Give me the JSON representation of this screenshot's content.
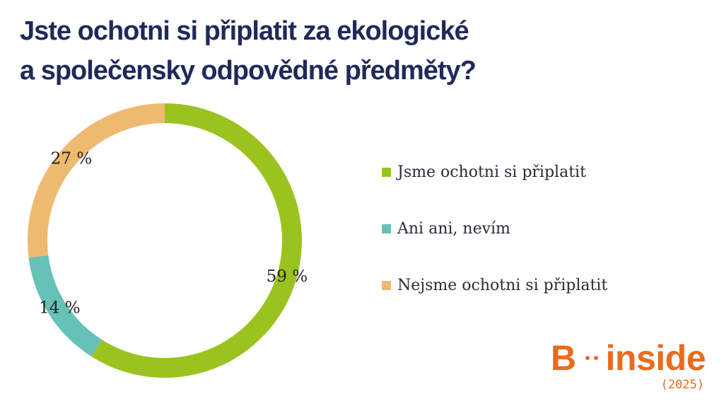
{
  "title_lines": [
    "Jste ochotni si připlatit za ekologické",
    "a společensky odpovědné předměty?"
  ],
  "chart_data": {
    "type": "pie",
    "subtype": "donut",
    "categories": [
      "Jsme ochotni si připlatit",
      "Ani ani, nevím",
      "Nejsme ochotni si připlatit"
    ],
    "values": [
      59,
      14,
      27
    ],
    "labels": [
      "59 %",
      "14 %",
      "27 %"
    ],
    "colors": [
      "#9bc31f",
      "#66c1b6",
      "#eeba70"
    ],
    "legend_position": "right"
  },
  "brand": {
    "left": "B",
    "right": "inside",
    "year": "(2025)",
    "color": "#ea6b1d"
  }
}
